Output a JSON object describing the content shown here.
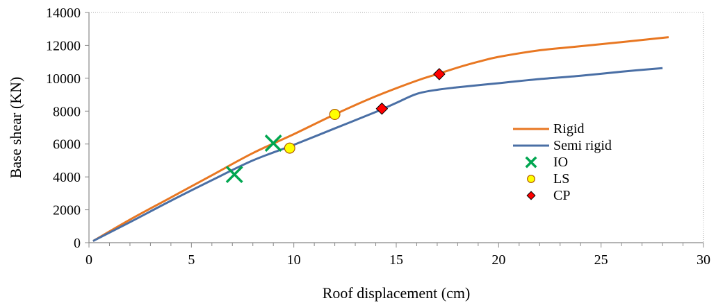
{
  "chart_data": {
    "type": "line",
    "xlabel": "Roof displacement (cm)",
    "ylabel": "Base shear (KN)",
    "xlim": [
      0,
      30
    ],
    "ylim": [
      0,
      14000
    ],
    "x_ticks": [
      0,
      5,
      10,
      15,
      20,
      25,
      30
    ],
    "y_ticks": [
      0,
      2000,
      4000,
      6000,
      8000,
      10000,
      12000,
      14000
    ],
    "grid": false,
    "legend_position": "right",
    "series": [
      {
        "name": "Rigid",
        "kind": "line",
        "color": "#E87722",
        "x": [
          0.2,
          2,
          4,
          6,
          8,
          10,
          12,
          14,
          16,
          17,
          18,
          19,
          20,
          22,
          24,
          26,
          28.3
        ],
        "y": [
          100,
          1400,
          2750,
          4100,
          5450,
          6600,
          7800,
          8900,
          9850,
          10250,
          10650,
          11000,
          11300,
          11700,
          11950,
          12200,
          12500
        ]
      },
      {
        "name": "Semi rigid",
        "kind": "line",
        "color": "#4A6FA5",
        "x": [
          0.2,
          2,
          4,
          6,
          8,
          10,
          12,
          14,
          15,
          16,
          17,
          18,
          20,
          22,
          24,
          26,
          28
        ],
        "y": [
          100,
          1250,
          2550,
          3800,
          5000,
          5950,
          6950,
          7950,
          8500,
          9050,
          9300,
          9450,
          9700,
          9950,
          10150,
          10400,
          10620
        ]
      },
      {
        "name": "IO",
        "kind": "marker",
        "marker": "x",
        "color": "#00A650",
        "points": [
          [
            7.1,
            4150
          ],
          [
            9.0,
            6050
          ]
        ]
      },
      {
        "name": "LS",
        "kind": "marker",
        "marker": "circle",
        "color": "#FFFF00",
        "points": [
          [
            9.8,
            5750
          ],
          [
            12.0,
            7800
          ]
        ]
      },
      {
        "name": "CP",
        "kind": "marker",
        "marker": "diamond",
        "color": "#FF0000",
        "points": [
          [
            14.3,
            8150
          ],
          [
            17.1,
            10250
          ]
        ]
      }
    ]
  }
}
